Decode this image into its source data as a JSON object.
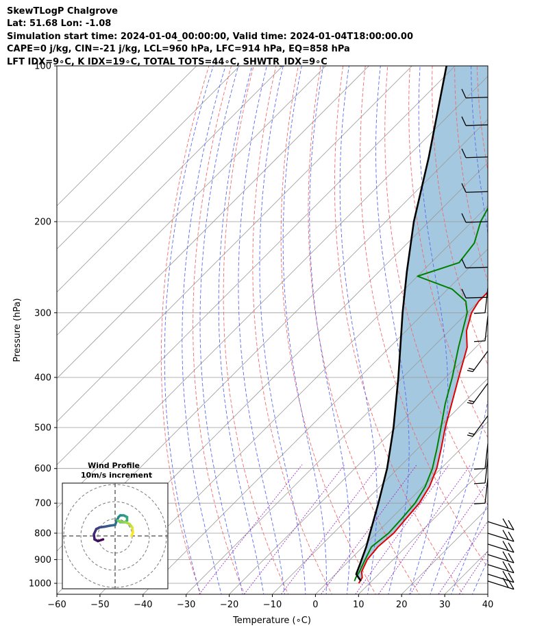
{
  "header": {
    "line1": "SkewTLogP Chalgrove",
    "line2": "Lat: 51.68   Lon: -1.08",
    "line3": "Simulation start time: 2024-01-04_00:00:00, Valid time: 2024-01-04T18:00:00.00",
    "line4": "CAPE=0 j/kg, CIN=-21 j/kg, LCL=960 hPa, LFC=914 hPa, EQ=858 hPa",
    "line5": "LFT IDX=9∘C, K IDX=19∘C, TOTAL TOTS=44∘C, SHWTR_IDX=9∘C"
  },
  "chart_data": {
    "type": "line",
    "title": "SkewTLogP Chalgrove",
    "xlabel": "Temperature (∘C)",
    "ylabel": "Pressure (hPa)",
    "xlim": [
      -60,
      40
    ],
    "ylim": [
      1050,
      100
    ],
    "y_scale": "log",
    "skew": "45 degrees",
    "x_ticks": [
      -60,
      -50,
      -40,
      -30,
      -20,
      -10,
      0,
      10,
      20,
      30,
      40
    ],
    "y_ticks": [
      1000,
      900,
      800,
      700,
      600,
      500,
      400,
      300,
      200,
      100
    ],
    "grid": true,
    "colors": {
      "temperature": "#e00000",
      "dewpoint": "#008000",
      "parcel": "#000000",
      "fill": "#a4c8df",
      "dry_adiabat": "#f06a6a",
      "moist_adiabat": "#5a6af0",
      "mixing_ratio": "#9b30c8",
      "isotherm": "#9a9a9a"
    },
    "series": [
      {
        "name": "temperature",
        "points": [
          [
            1000,
            7.5
          ],
          [
            975,
            7.0
          ],
          [
            950,
            5.5
          ],
          [
            900,
            4.0
          ],
          [
            850,
            3.5
          ],
          [
            800,
            4.0
          ],
          [
            750,
            3.5
          ],
          [
            700,
            3.0
          ],
          [
            650,
            1.5
          ],
          [
            600,
            -1.0
          ],
          [
            550,
            -4.5
          ],
          [
            500,
            -8.5
          ],
          [
            450,
            -12.5
          ],
          [
            400,
            -17.0
          ],
          [
            350,
            -22.0
          ],
          [
            325,
            -26.0
          ],
          [
            300,
            -29.0
          ],
          [
            285,
            -30.0
          ],
          [
            270,
            -30.0
          ],
          [
            250,
            -30.5
          ],
          [
            225,
            -32.0
          ],
          [
            200,
            -35.0
          ],
          [
            175,
            -38.0
          ],
          [
            150,
            -41.0
          ],
          [
            130,
            -44.5
          ],
          [
            115,
            -47.5
          ],
          [
            100,
            -52.5
          ]
        ]
      },
      {
        "name": "dewpoint",
        "points": [
          [
            990,
            6.0
          ],
          [
            975,
            5.5
          ],
          [
            950,
            5.0
          ],
          [
            900,
            3.5
          ],
          [
            850,
            2.0
          ],
          [
            800,
            2.8
          ],
          [
            750,
            2.5
          ],
          [
            700,
            2.0
          ],
          [
            650,
            0.5
          ],
          [
            600,
            -2.0
          ],
          [
            550,
            -5.5
          ],
          [
            500,
            -9.5
          ],
          [
            450,
            -14.0
          ],
          [
            400,
            -18.5
          ],
          [
            350,
            -24.0
          ],
          [
            320,
            -27.5
          ],
          [
            300,
            -30.0
          ],
          [
            285,
            -33.0
          ],
          [
            270,
            -39.0
          ],
          [
            255,
            -50.0
          ],
          [
            240,
            -43.5
          ],
          [
            220,
            -44.5
          ],
          [
            200,
            -48.0
          ],
          [
            180,
            -50.5
          ],
          [
            150,
            -56.0
          ],
          [
            125,
            -63.0
          ],
          [
            100,
            -72.0
          ]
        ]
      },
      {
        "name": "parcel",
        "points": [
          [
            990,
            7.5
          ],
          [
            960,
            4.8
          ],
          [
            914,
            3.2
          ],
          [
            850,
            0.8
          ],
          [
            800,
            -1.5
          ],
          [
            700,
            -6.5
          ],
          [
            600,
            -12.5
          ],
          [
            500,
            -20.5
          ],
          [
            400,
            -31.0
          ],
          [
            300,
            -45.0
          ],
          [
            250,
            -53.5
          ],
          [
            200,
            -63.5
          ],
          [
            150,
            -75.0
          ],
          [
            100,
            -92.0
          ]
        ]
      }
    ],
    "wind_barbs": [
      {
        "p": 990,
        "barbs": 2
      },
      {
        "p": 960,
        "barbs": 2
      },
      {
        "p": 920,
        "barbs": 2
      },
      {
        "p": 880,
        "barbs": 2
      },
      {
        "p": 840,
        "barbs": 2
      },
      {
        "p": 800,
        "barbs": 2
      },
      {
        "p": 760,
        "barbs": 2
      },
      {
        "p": 700,
        "barbs": 1
      },
      {
        "p": 640,
        "barbs": 1
      },
      {
        "p": 600,
        "barbs": 1
      },
      {
        "p": 520,
        "barbs": 2
      },
      {
        "p": 450,
        "barbs": 2
      },
      {
        "p": 390,
        "barbs": 2
      },
      {
        "p": 340,
        "barbs": 1
      },
      {
        "p": 300,
        "barbs": 1
      },
      {
        "p": 280,
        "barbs": 1
      },
      {
        "p": 245,
        "barbs": 1
      },
      {
        "p": 200,
        "barbs": 1
      },
      {
        "p": 175,
        "barbs": 1
      },
      {
        "p": 150,
        "barbs": 1
      },
      {
        "p": 130,
        "barbs": 1
      },
      {
        "p": 115,
        "barbs": 1
      }
    ],
    "hodograph": {
      "title": "Wind Profile",
      "subtitle": "10m/s increment",
      "rings": 3,
      "points_uv": [
        [
          -3.5,
          -1.0
        ],
        [
          -5.0,
          -1.5
        ],
        [
          -6.0,
          -1.0
        ],
        [
          -6.2,
          0.5
        ],
        [
          -5.5,
          2.0
        ],
        [
          -4.5,
          2.5
        ],
        [
          -3.0,
          2.7
        ],
        [
          -1.5,
          3.0
        ],
        [
          0.0,
          3.2
        ],
        [
          0.5,
          4.5
        ],
        [
          1.0,
          5.5
        ],
        [
          1.5,
          6.0
        ],
        [
          2.5,
          6.0
        ],
        [
          3.5,
          5.5
        ],
        [
          3.5,
          4.5
        ],
        [
          2.8,
          4.0
        ],
        [
          1.5,
          4.0
        ],
        [
          0.8,
          4.5
        ],
        [
          1.5,
          4.2
        ],
        [
          3.0,
          4.0
        ],
        [
          4.2,
          3.5
        ],
        [
          5.0,
          2.5
        ],
        [
          5.2,
          1.0
        ],
        [
          4.8,
          0.0
        ]
      ],
      "colorscale": [
        "#440154",
        "#3b528b",
        "#21918c",
        "#5ec962",
        "#fde725"
      ]
    }
  }
}
